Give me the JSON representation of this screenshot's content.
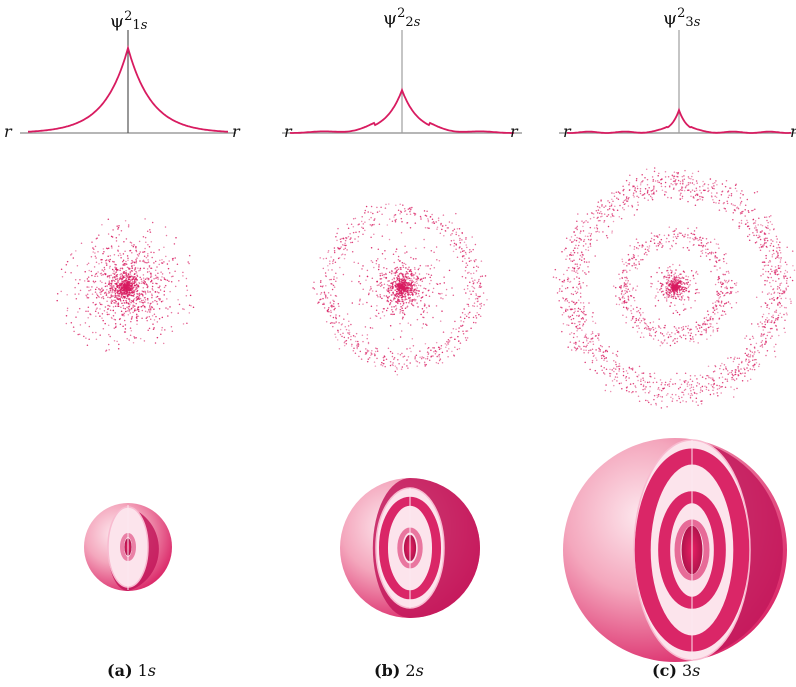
{
  "axis_end_label": "r",
  "panels": [
    {
      "id": "a",
      "psi_symbol": "ψ",
      "exponent": "2",
      "orbital_number": "1",
      "orbital_letter": "s",
      "caption_tag": "(a)",
      "caption_number": "1",
      "caption_letter": "s",
      "nodes": 0
    },
    {
      "id": "b",
      "psi_symbol": "ψ",
      "exponent": "2",
      "orbital_number": "2",
      "orbital_letter": "s",
      "caption_tag": "(b)",
      "caption_number": "2",
      "caption_letter": "s",
      "nodes": 1
    },
    {
      "id": "c",
      "psi_symbol": "ψ",
      "exponent": "2",
      "orbital_number": "3",
      "orbital_letter": "s",
      "caption_tag": "(c)",
      "caption_number": "3",
      "caption_letter": "s",
      "nodes": 2
    }
  ],
  "colors": {
    "curve": "#d81b60",
    "dots": "#d81b60",
    "axis": "#9e9e9e",
    "sphere_light": "#fce4ec",
    "sphere_dark": "#d81b60"
  }
}
